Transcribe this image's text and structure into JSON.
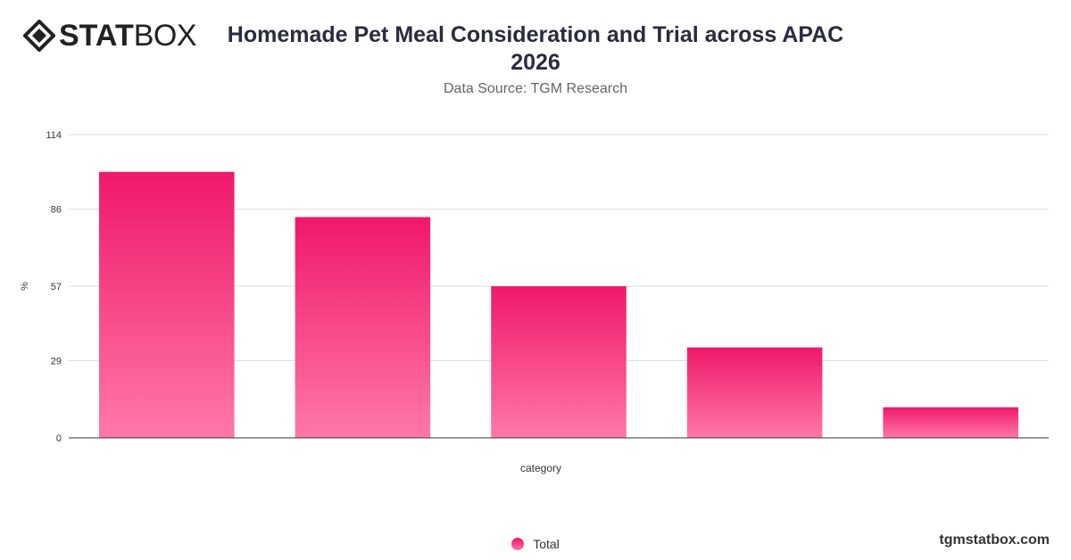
{
  "brand": {
    "logo_bold": "STAT",
    "logo_light": "BOX",
    "watermark": "tgmstatbox.com"
  },
  "header": {
    "title": "Homemade Pet Meal Consideration and Trial across APAC 2026",
    "subtitle": "Data Source: TGM Research"
  },
  "colors": {
    "bar_top": "#f0186a",
    "bar_bottom": "#ff78a8",
    "grid": "#dddddd",
    "axis": "#333333"
  },
  "chart_data": {
    "type": "bar",
    "title": "Homemade Pet Meal Consideration and Trial across APAC 2026",
    "xlabel": "category",
    "ylabel": "%",
    "categories": [
      "",
      "",
      "",
      "",
      ""
    ],
    "yticks": [
      0,
      29,
      57,
      86,
      114
    ],
    "ylim": [
      0,
      114
    ],
    "grid": true,
    "legend": "bottom-center",
    "series": [
      {
        "name": "Total",
        "values": [
          100,
          83,
          57,
          34,
          11.5
        ]
      }
    ]
  }
}
